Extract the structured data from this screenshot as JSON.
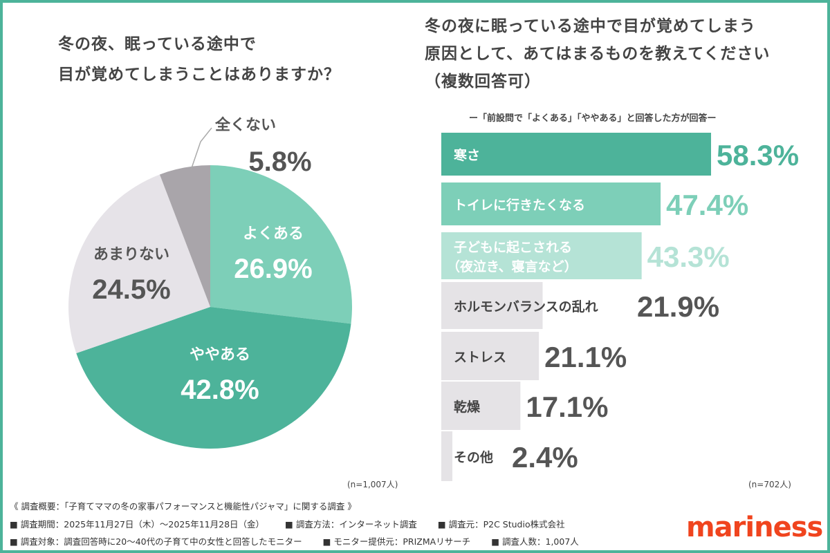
{
  "chart_data": [
    {
      "type": "pie",
      "title_lines": [
        "冬の夜、眠っている途中で",
        "目が覚めてしまうことはありますか？"
      ],
      "slices": [
        {
          "label": "よくある",
          "value": 26.9,
          "display": "26.9%",
          "color": "#7dcfb8",
          "text_color": "#ffffff"
        },
        {
          "label": "ややある",
          "value": 42.8,
          "display": "42.8%",
          "color": "#4db39a",
          "text_color": "#ffffff"
        },
        {
          "label": "あまりない",
          "value": 24.5,
          "display": "24.5%",
          "color": "#e6e3e8",
          "text_color": "#555555"
        },
        {
          "label": "全くない",
          "value": 5.8,
          "display": "5.8%",
          "color": "#a9a5aa",
          "text_color": "#555555"
        }
      ],
      "n_label": "(n=1,007人)"
    },
    {
      "type": "bar",
      "orientation": "horizontal",
      "title_lines": [
        "冬の夜に眠っている途中で目が覚めてしまう",
        "原因として、あてはまるものを教えてください",
        "（複数回答可）"
      ],
      "subtitle": "ー「前設問で「よくある」「ややある」と回答した方が回答ー",
      "categories": [
        [
          "寒さ"
        ],
        [
          "トイレに行きたくなる"
        ],
        [
          "子どもに起こされる",
          "（夜泣き、寝言など）"
        ],
        [
          "ホルモンバランスの乱れ"
        ],
        [
          "ストレス"
        ],
        [
          "乾燥"
        ],
        [
          "その他"
        ]
      ],
      "values": [
        58.3,
        47.4,
        43.3,
        21.9,
        21.1,
        17.1,
        2.4
      ],
      "display": [
        "58.3%",
        "47.4%",
        "43.3%",
        "21.9%",
        "21.1%",
        "17.1%",
        "2.4%"
      ],
      "bar_colors": [
        "#4db39a",
        "#7dcfb8",
        "#b5e3d6",
        "#e5e3e6",
        "#e5e3e6",
        "#e5e3e6",
        "#e5e3e6"
      ],
      "value_colors": [
        "#4db39a",
        "#7dcfb8",
        "#b5e3d6",
        "#555555",
        "#555555",
        "#555555",
        "#555555"
      ],
      "label_colors": [
        "#ffffff",
        "#ffffff",
        "#ffffff",
        "#444444",
        "#444444",
        "#444444",
        "#444444"
      ],
      "n_label": "(n=702人)"
    }
  ],
  "footer": {
    "overview": "《 調査概要：「子育てママの冬の家事パフォーマンスと機能性パジャマ」に関する調査 》",
    "line2": [
      "■ 調査期間：2025年11月27日（木）～2025年11月28日（金）",
      "■ 調査方法：インターネット調査",
      "■ 調査元：P2C Studio株式会社"
    ],
    "line3": [
      "■ 調査対象：調査回答時に20～40代の子育て中の女性と回答したモニター",
      "■ モニター提供元：PRIZMAリサーチ",
      "■ 調査人数：1,007人"
    ]
  },
  "logo": "mariness"
}
